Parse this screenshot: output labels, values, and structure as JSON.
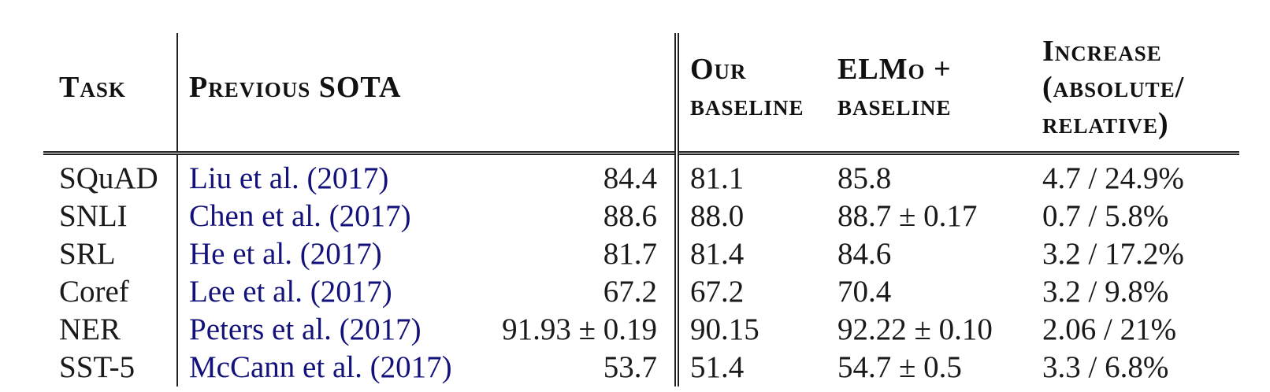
{
  "headers": {
    "task": "Task",
    "previous_sota": "Previous SOTA",
    "our_baseline_1": "Our",
    "our_baseline_2": "baseline",
    "elmo_1": "ELMo +",
    "elmo_2": "baseline",
    "increase_1": "Increase",
    "increase_2": "(absolute/",
    "increase_3": "relative)"
  },
  "rows": [
    {
      "task": "SQuAD",
      "citation": "Liu et al. (2017)",
      "sota": "84.4",
      "baseline": "81.1",
      "elmo": "85.8",
      "increase": "4.7 / 24.9%"
    },
    {
      "task": "SNLI",
      "citation": "Chen et al. (2017)",
      "sota": "88.6",
      "baseline": "88.0",
      "elmo": "88.7 ± 0.17",
      "increase": "0.7 / 5.8%"
    },
    {
      "task": "SRL",
      "citation": "He et al. (2017)",
      "sota": "81.7",
      "baseline": "81.4",
      "elmo": "84.6",
      "increase": "3.2 / 17.2%"
    },
    {
      "task": "Coref",
      "citation": "Lee et al. (2017)",
      "sota": "67.2",
      "baseline": "67.2",
      "elmo": "70.4",
      "increase": "3.2 / 9.8%"
    },
    {
      "task": "NER",
      "citation": "Peters et al. (2017)",
      "sota": "91.93 ± 0.19",
      "baseline": "90.15",
      "elmo": "92.22 ± 0.10",
      "increase": "2.06 / 21%"
    },
    {
      "task": "SST-5",
      "citation": "McCann et al. (2017)",
      "sota": "53.7",
      "baseline": "51.4",
      "elmo": "54.7 ± 0.5",
      "increase": "3.3 / 6.8%"
    }
  ]
}
